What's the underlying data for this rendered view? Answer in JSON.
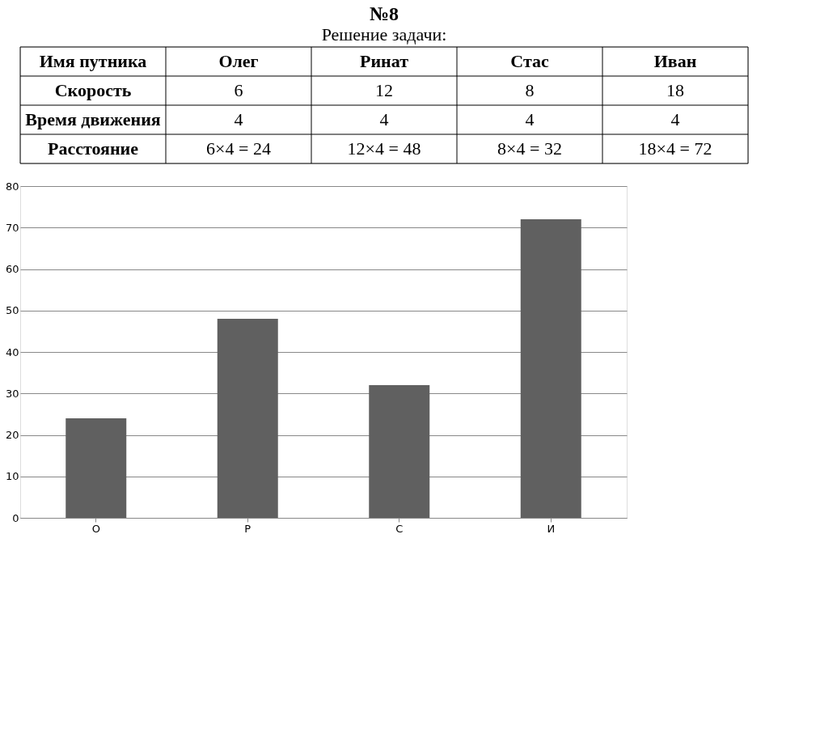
{
  "chart_data": {
    "type": "bar",
    "title": "№8",
    "subtitle": "Решение задачи:",
    "annotations": [
      "Имя путника",
      "Олег",
      "Ринат",
      "Стас",
      "Иван",
      "Скорость",
      "6",
      "12",
      "8",
      "18",
      "Время движения",
      "4",
      "4",
      "4",
      "4",
      "Расстояние",
      "6×4 = 24",
      "12×4 = 48",
      "8×4 = 32",
      "18×4 = 72"
    ],
    "categories": [
      "О",
      "Р",
      "С",
      "И"
    ],
    "values": [
      24,
      48,
      32,
      72
    ],
    "color": "#606060",
    "ylim": [
      0,
      80
    ],
    "yticks": [
      0,
      10,
      20,
      30,
      40,
      50,
      60,
      70,
      80
    ],
    "grid": "y"
  }
}
